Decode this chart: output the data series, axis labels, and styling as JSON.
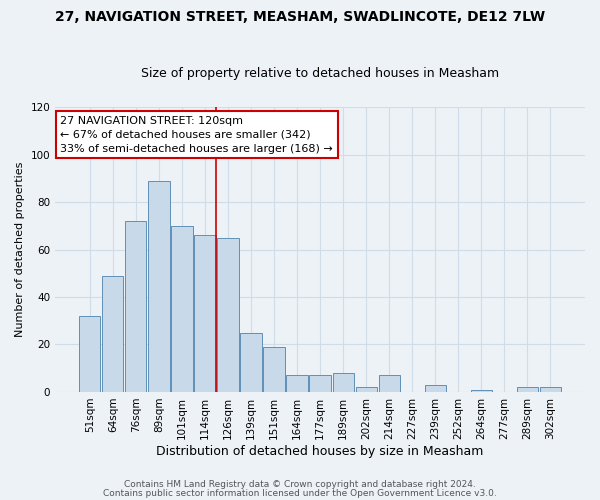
{
  "title": "27, NAVIGATION STREET, MEASHAM, SWADLINCOTE, DE12 7LW",
  "subtitle": "Size of property relative to detached houses in Measham",
  "xlabel": "Distribution of detached houses by size in Measham",
  "ylabel": "Number of detached properties",
  "bar_labels": [
    "51sqm",
    "64sqm",
    "76sqm",
    "89sqm",
    "101sqm",
    "114sqm",
    "126sqm",
    "139sqm",
    "151sqm",
    "164sqm",
    "177sqm",
    "189sqm",
    "202sqm",
    "214sqm",
    "227sqm",
    "239sqm",
    "252sqm",
    "264sqm",
    "277sqm",
    "289sqm",
    "302sqm"
  ],
  "bar_values": [
    32,
    49,
    72,
    89,
    70,
    66,
    65,
    25,
    19,
    7,
    7,
    8,
    2,
    7,
    0,
    3,
    0,
    1,
    0,
    2,
    2
  ],
  "bar_color": "#c8d9ea",
  "bar_edge_color": "#6090b8",
  "vline_x_index": 5.5,
  "vline_color": "#cc0000",
  "annotation_title": "27 NAVIGATION STREET: 120sqm",
  "annotation_line1": "← 67% of detached houses are smaller (342)",
  "annotation_line2": "33% of semi-detached houses are larger (168) →",
  "annotation_box_color": "#ffffff",
  "annotation_box_edge": "#cc0000",
  "ylim": [
    0,
    120
  ],
  "yticks": [
    0,
    20,
    40,
    60,
    80,
    100,
    120
  ],
  "footer1": "Contains HM Land Registry data © Crown copyright and database right 2024.",
  "footer2": "Contains public sector information licensed under the Open Government Licence v3.0.",
  "background_color": "#edf2f7",
  "grid_color": "#d0dce8",
  "title_fontsize": 10,
  "subtitle_fontsize": 9,
  "ylabel_fontsize": 8,
  "xlabel_fontsize": 9,
  "tick_fontsize": 7.5,
  "annotation_fontsize": 8,
  "footer_fontsize": 6.5
}
